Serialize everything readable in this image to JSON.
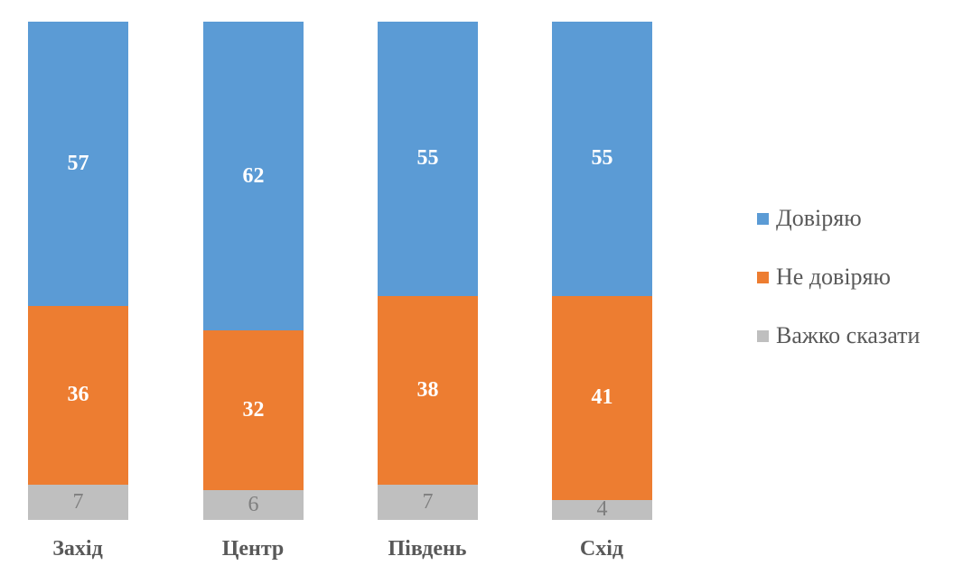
{
  "chart_data": {
    "type": "bar",
    "stacked": true,
    "percent_stacked": true,
    "title": "",
    "xlabel": "",
    "ylabel": "",
    "ylim": [
      0,
      100
    ],
    "grid": false,
    "legend_position": "right",
    "categories": [
      "Захід",
      "Центр",
      "Південь",
      "Схід"
    ],
    "series": [
      {
        "name": "Довіряю",
        "color": "#5b9bd5",
        "values": [
          57,
          62,
          55,
          55
        ]
      },
      {
        "name": "Не довіряю",
        "color": "#ed7d31",
        "values": [
          36,
          32,
          38,
          41
        ]
      },
      {
        "name": "Важко сказати",
        "color": "#bfbfbf",
        "values": [
          7,
          6,
          7,
          4
        ]
      }
    ]
  },
  "legend": {
    "items": [
      {
        "label": "Довіряю",
        "color": "#5b9bd5"
      },
      {
        "label": "Не довіряю",
        "color": "#ed7d31"
      },
      {
        "label": "Важко сказати",
        "color": "#bfbfbf"
      }
    ]
  },
  "bars": [
    {
      "category": "Захід",
      "trust": "57",
      "distrust": "36",
      "hard_to_say": "7"
    },
    {
      "category": "Центр",
      "trust": "62",
      "distrust": "32",
      "hard_to_say": "6"
    },
    {
      "category": "Південь",
      "trust": "55",
      "distrust": "38",
      "hard_to_say": "7"
    },
    {
      "category": "Схід",
      "trust": "55",
      "distrust": "41",
      "hard_to_say": "4"
    }
  ]
}
